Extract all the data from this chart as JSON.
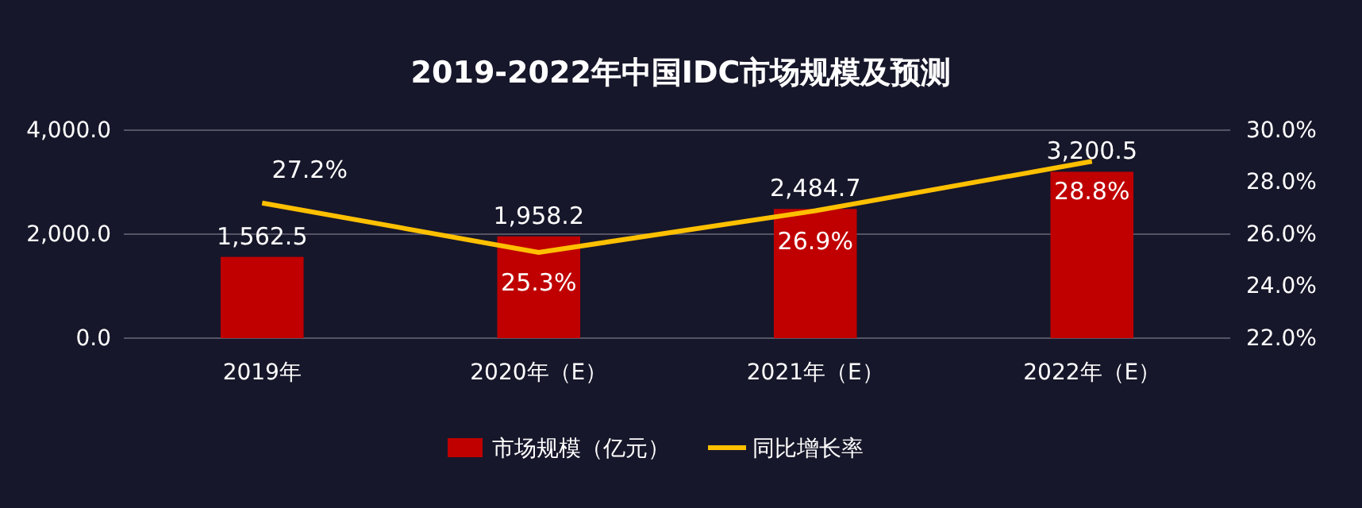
{
  "chart_data": {
    "type": "bar",
    "title": "2019-2022年中国IDC市场规模及预测",
    "categories": [
      "2019年",
      "2020年（E）",
      "2021年（E）",
      "2022年（E）"
    ],
    "series": [
      {
        "name": "市场规模（亿元）",
        "color": "#c00000",
        "values": [
          1562.5,
          1958.2,
          2484.7,
          3200.5
        ],
        "value_labels": [
          "1,562.5",
          "1,958.2",
          "2,484.7",
          "3,200.5"
        ]
      },
      {
        "name": "同比增长率",
        "type": "line",
        "axis": "y2",
        "color": "#ffc000",
        "values": [
          27.2,
          25.3,
          26.9,
          28.8
        ],
        "value_labels": [
          "27.2%",
          "25.3%",
          "26.9%",
          "28.8%"
        ]
      }
    ],
    "ylim": [
      0,
      4000
    ],
    "yticks": [
      {
        "value": 0,
        "label": "0.0"
      },
      {
        "value": 2000,
        "label": "2,000.0"
      },
      {
        "value": 4000,
        "label": "4,000.0"
      }
    ],
    "y2lim": [
      22,
      30
    ],
    "y2ticks": [
      {
        "value": 22,
        "label": "22.0%"
      },
      {
        "value": 24,
        "label": "24.0%"
      },
      {
        "value": 26,
        "label": "26.0%"
      },
      {
        "value": 28,
        "label": "28.0%"
      },
      {
        "value": 30,
        "label": "30.0%"
      }
    ],
    "grid": "y",
    "legend": "bottom",
    "marker": "none",
    "line_style": "solid"
  }
}
